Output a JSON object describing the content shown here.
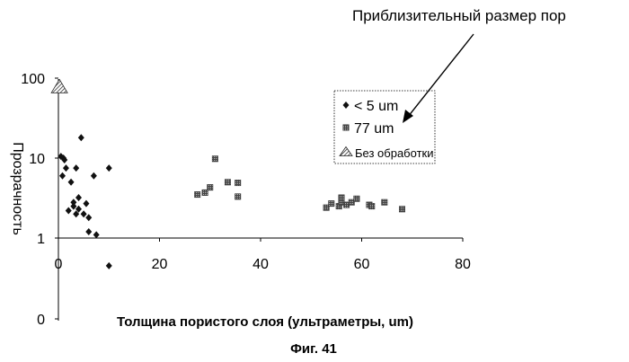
{
  "chart_data": {
    "type": "scatter",
    "title": "Фиг. 41",
    "xlabel": "Толщина пористого слоя (ультраметры, um)",
    "ylabel": "Прозрачность",
    "xlim": [
      0,
      80
    ],
    "x_ticks": [
      0,
      20,
      40,
      60,
      80
    ],
    "y_scale": "log",
    "y_ticks": [
      "100",
      "10",
      "1",
      "0"
    ],
    "grid": false,
    "legend_placement": "right-middle",
    "annotation": "Приблизительный размер пор",
    "series": [
      {
        "name": "< 5 um",
        "marker": "diamond",
        "color": "#111111",
        "points": [
          [
            0.5,
            10.5
          ],
          [
            0.8,
            6
          ],
          [
            1,
            10
          ],
          [
            1.2,
            9.5
          ],
          [
            1.5,
            7.5
          ],
          [
            2,
            2.2
          ],
          [
            2.5,
            5
          ],
          [
            3,
            2.5
          ],
          [
            3,
            2.8
          ],
          [
            3.5,
            7.5
          ],
          [
            3.5,
            2
          ],
          [
            4,
            2.3
          ],
          [
            4,
            3.2
          ],
          [
            4.5,
            18
          ],
          [
            5,
            2
          ],
          [
            5.5,
            2.7
          ],
          [
            6,
            1.8
          ],
          [
            6,
            1.2
          ],
          [
            7,
            6
          ],
          [
            7.5,
            1.1
          ],
          [
            10,
            7.5
          ],
          [
            10,
            0.45
          ]
        ]
      },
      {
        "name": "77 um",
        "marker": "square",
        "color": "#555555",
        "points": [
          [
            27.5,
            3.5
          ],
          [
            29,
            3.7
          ],
          [
            30,
            4.3
          ],
          [
            31,
            9.8
          ],
          [
            33.5,
            5
          ],
          [
            35.5,
            4.9
          ],
          [
            35.5,
            3.3
          ],
          [
            53,
            2.4
          ],
          [
            54,
            2.7
          ],
          [
            55.5,
            2.5
          ],
          [
            56,
            2.8
          ],
          [
            56,
            3.2
          ],
          [
            57,
            2.6
          ],
          [
            58,
            2.8
          ],
          [
            59,
            3.1
          ],
          [
            61.5,
            2.6
          ],
          [
            62,
            2.5
          ],
          [
            64.5,
            2.8
          ],
          [
            68,
            2.3
          ]
        ]
      },
      {
        "name": "Без обработки",
        "marker": "triangle",
        "color": "#888888",
        "points": [
          [
            0.2,
            78
          ]
        ]
      }
    ]
  }
}
